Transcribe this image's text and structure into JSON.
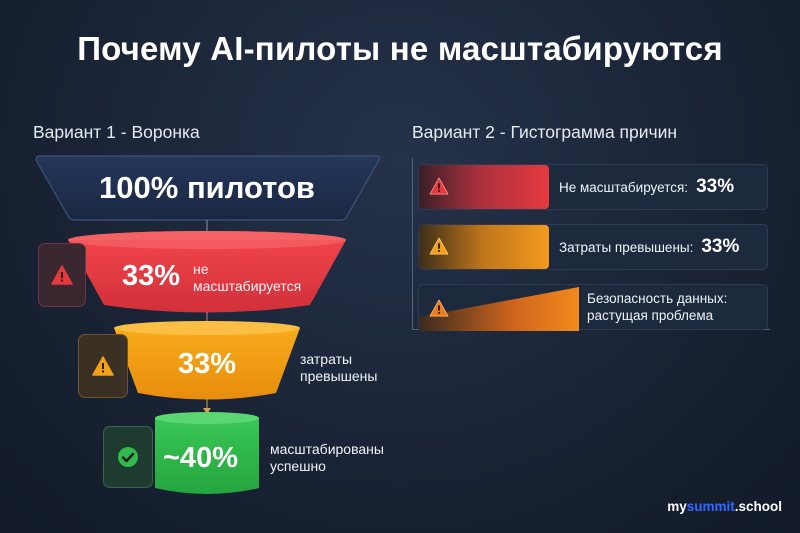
{
  "title": "Почему AI-пилоты не масштабируются",
  "left_section": {
    "title": "Вариант 1 - Воронка",
    "stages": [
      {
        "value": "100% пилотов",
        "note": "",
        "icon": "none",
        "color": "#1f2d48"
      },
      {
        "value": "33%",
        "note_line1": "не",
        "note_line2": "масштабируется",
        "icon": "warning-icon",
        "color": "#e73b43"
      },
      {
        "value": "33%",
        "note_line1": "затраты",
        "note_line2": "превышены",
        "icon": "warning-icon",
        "color": "#f5a00f"
      },
      {
        "value": "~40%",
        "note_line1": "масштабированы",
        "note_line2": "успешно",
        "icon": "check-circle-icon",
        "color": "#2fb84a"
      }
    ]
  },
  "right_section": {
    "title": "Вариант 2 - Гистограмма причин",
    "rows": [
      {
        "label": "Не масштабируется:",
        "value": "33%",
        "icon": "warning-icon",
        "color": "#e53a3e"
      },
      {
        "label": "Затраты превышены:",
        "value": "33%",
        "icon": "warning-icon",
        "color": "#f39a1e"
      },
      {
        "label_line1": "Безопасность данных:",
        "label_line2": "растущая проблема",
        "icon": "warning-icon",
        "color": "#f07b1a"
      }
    ]
  },
  "brand": {
    "part1": "my",
    "part2": "summit",
    "part3": ".school"
  }
}
